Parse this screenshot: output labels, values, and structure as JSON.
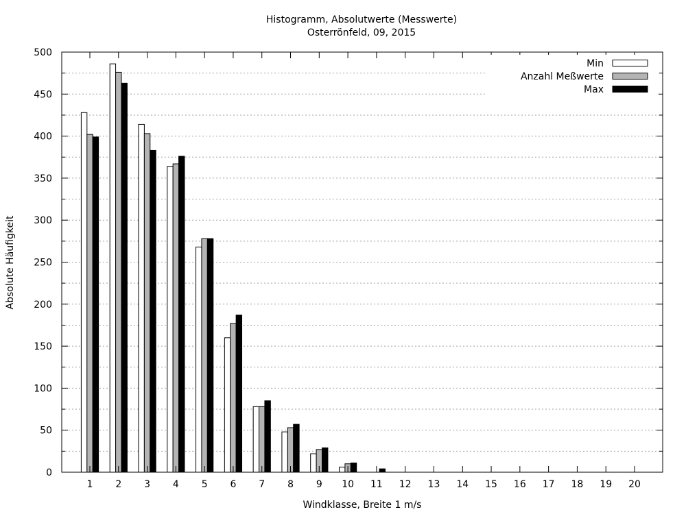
{
  "chart_data": {
    "type": "bar",
    "title": "Histogramm, Absolutwerte (Messwerte)",
    "subtitle": "Osterrönfeld, 09, 2015",
    "xlabel": "Windklasse, Breite 1 m/s",
    "ylabel": "Absolute Häufigkeit",
    "ylim": [
      0,
      500
    ],
    "yticks": [
      0,
      50,
      100,
      150,
      200,
      250,
      300,
      350,
      400,
      450,
      500
    ],
    "grid": true,
    "legend_position": "top-right",
    "categories": [
      "1",
      "2",
      "3",
      "4",
      "5",
      "6",
      "7",
      "8",
      "9",
      "10",
      "11",
      "12",
      "13",
      "14",
      "15",
      "16",
      "17",
      "18",
      "19",
      "20"
    ],
    "series": [
      {
        "name": "Min",
        "color": "#ffffff",
        "values": [
          428,
          486,
          414,
          364,
          268,
          160,
          78,
          48,
          22,
          6,
          0,
          0,
          0,
          0,
          0,
          0,
          0,
          0,
          0,
          0
        ]
      },
      {
        "name": "Anzahl Meßwerte",
        "color": "#b4b4b4",
        "values": [
          402,
          476,
          403,
          367,
          278,
          177,
          78,
          53,
          27,
          10,
          0,
          0,
          0,
          0,
          0,
          0,
          0,
          0,
          0,
          0
        ]
      },
      {
        "name": "Max",
        "color": "#000000",
        "values": [
          399,
          463,
          383,
          376,
          278,
          187,
          85,
          57,
          29,
          11,
          4,
          0,
          0,
          0,
          0,
          0,
          0,
          0,
          0,
          0
        ]
      }
    ]
  }
}
